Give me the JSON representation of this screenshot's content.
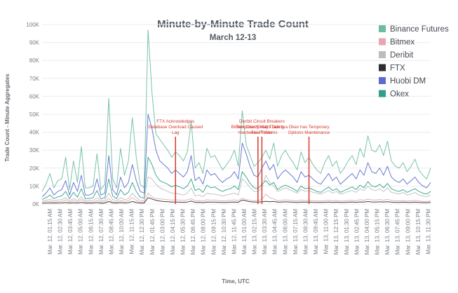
{
  "chart_data": {
    "type": "line",
    "title": "Minute-by-Minute Trade Count",
    "subtitle": "March 12-13",
    "xlabel": "Time, UTC",
    "ylabel": "Trade Count - Minute Aggregates",
    "ylim": [
      0,
      100000
    ],
    "y_ticks": [
      {
        "value": 0,
        "label": "0K"
      },
      {
        "value": 10000,
        "label": "10K"
      },
      {
        "value": 20000,
        "label": "20K"
      },
      {
        "value": 30000,
        "label": "30K"
      },
      {
        "value": 40000,
        "label": "40K"
      },
      {
        "value": 50000,
        "label": "50K"
      },
      {
        "value": 60000,
        "label": "60K"
      },
      {
        "value": 70000,
        "label": "70K"
      },
      {
        "value": 80000,
        "label": "80K"
      },
      {
        "value": 90000,
        "label": "90K"
      },
      {
        "value": 100000,
        "label": "100K"
      }
    ],
    "x_ticks": [
      "Mar. 12, 01:15 AM",
      "Mar. 12, 02:30 AM",
      "Mar. 12, 03:45 AM",
      "Mar. 12, 05:00 AM",
      "Mar. 12, 06:15 AM",
      "Mar. 12, 07:30 AM",
      "Mar. 12, 08:45 AM",
      "Mar. 12, 10:00 AM",
      "Mar. 12, 11:15 AM",
      "Mar. 12, 12:30 PM",
      "Mar. 12, 01:45 PM",
      "Mar. 12, 03:00 PM",
      "Mar. 12, 04:15 PM",
      "Mar. 12, 05:30 PM",
      "Mar. 12, 06:45 PM",
      "Mar. 12, 08:00 PM",
      "Mar. 12, 09:15 PM",
      "Mar. 12, 10:30 PM",
      "Mar. 12, 11:45 PM",
      "Mar. 13, 01:00 AM",
      "Mar. 13, 02:15 AM",
      "Mar. 13, 03:30 AM",
      "Mar. 13, 04:45 AM",
      "Mar. 13, 06:00 AM",
      "Mar. 13, 07:15 AM",
      "Mar. 13, 08:30 AM",
      "Mar. 13, 09:45 AM",
      "Mar. 13, 11:00 AM",
      "Mar. 13, 12:15 PM",
      "Mar. 13, 01:30 PM",
      "Mar. 13, 02:45 PM",
      "Mar. 13, 04:00 PM",
      "Mar. 13, 05:15 PM",
      "Mar. 13, 06:30 PM",
      "Mar. 13, 07:45 PM",
      "Mar. 13, 09:00 PM",
      "Mar. 13, 10:15 PM",
      "Mar. 13, 11:30 PM"
    ],
    "grid": true,
    "legend_position": "top-right",
    "series": [
      {
        "name": "Binance Futures",
        "color": "#6cbd9e",
        "values": [
          7000,
          11000,
          17000,
          9000,
          13000,
          14000,
          26000,
          8000,
          24000,
          12000,
          32000,
          9000,
          9000,
          10000,
          28000,
          8000,
          11000,
          59000,
          14000,
          9000,
          31000,
          16000,
          24000,
          48000,
          26000,
          11000,
          9000,
          97000,
          62000,
          39000,
          36000,
          33000,
          30000,
          26000,
          29000,
          27000,
          24000,
          29000,
          46000,
          20000,
          23000,
          17000,
          31000,
          26000,
          27000,
          23000,
          19000,
          22000,
          25000,
          30000,
          21000,
          52000,
          33000,
          27000,
          21000,
          23000,
          26000,
          30000,
          25000,
          34000,
          21000,
          27000,
          30000,
          26000,
          23000,
          19000,
          29000,
          23000,
          26000,
          22000,
          19000,
          17000,
          23000,
          27000,
          21000,
          24000,
          17000,
          20000,
          24000,
          27000,
          22000,
          31000,
          26000,
          38000,
          30000,
          29000,
          33000,
          27000,
          35000,
          24000,
          21000,
          20000,
          23000,
          18000,
          21000,
          25000,
          19000,
          16000,
          14000,
          20000
        ]
      },
      {
        "name": "Bitmex",
        "color": "#e8a6b4",
        "values": [
          1000,
          1200,
          1500,
          1000,
          1300,
          1500,
          2200,
          1000,
          2000,
          1200,
          2500,
          1000,
          1000,
          1100,
          2000,
          900,
          1100,
          3000,
          1200,
          900,
          2000,
          1400,
          1800,
          3500,
          2000,
          1100,
          1000,
          6000,
          4000,
          3000,
          2800,
          2600,
          2400,
          2200,
          2300,
          2200,
          2000,
          2300,
          3000,
          1800,
          1900,
          1600,
          2400,
          2100,
          2200,
          1900,
          1700,
          1800,
          2000,
          2300,
          1800,
          3200,
          2500,
          2100,
          1800,
          1900,
          2600,
          5500,
          3500,
          2800,
          1800,
          2100,
          2300,
          2100,
          1900,
          1700,
          2200,
          1900,
          2100,
          1800,
          1700,
          1600,
          1900,
          2100,
          1800,
          2000,
          1600,
          1700,
          2000,
          2100,
          1800,
          2400,
          2100,
          2700,
          2300,
          2200,
          2500,
          2100,
          2600,
          2000,
          1800,
          1700,
          1900,
          1600,
          1800,
          2000,
          1700,
          1500,
          1400,
          1700
        ]
      },
      {
        "name": "Deribit",
        "color": "#bdbdbd",
        "values": [
          1500,
          2000,
          2500,
          1800,
          2200,
          2500,
          3500,
          1800,
          3000,
          2000,
          4000,
          1800,
          1800,
          2000,
          3500,
          1600,
          2000,
          6000,
          2500,
          1800,
          3500,
          2500,
          3000,
          6000,
          3500,
          2000,
          1800,
          15000,
          14000,
          11000,
          9000,
          8000,
          7000,
          6000,
          6000,
          5500,
          5000,
          6000,
          9000,
          4500,
          5000,
          4000,
          6000,
          5500,
          5500,
          5000,
          4500,
          5000,
          5500,
          6000,
          5000,
          14000,
          12000,
          9000,
          7000,
          7000,
          9000,
          16000,
          12000,
          10000,
          7000,
          8000,
          9000,
          8000,
          7000,
          6000,
          8000,
          7000,
          7500,
          6500,
          6000,
          5500,
          6500,
          7500,
          6000,
          7000,
          5500,
          6000,
          7000,
          7500,
          6500,
          8500,
          7500,
          10000,
          8000,
          7500,
          8500,
          7000,
          9000,
          6500,
          6000,
          5500,
          6500,
          5000,
          5500,
          6500,
          5000,
          4500,
          4000,
          5000
        ]
      },
      {
        "name": "FTX",
        "color": "#2e2e2e",
        "values": [
          400,
          500,
          600,
          450,
          550,
          600,
          800,
          450,
          700,
          500,
          900,
          450,
          450,
          500,
          800,
          400,
          500,
          1400,
          600,
          450,
          800,
          600,
          700,
          1400,
          800,
          500,
          450,
          3500,
          2800,
          2000,
          1600,
          1400,
          1300,
          1100,
          1100,
          1000,
          950,
          1100,
          1600,
          900,
          950,
          800,
          1100,
          1000,
          1000,
          950,
          850,
          900,
          1000,
          1100,
          950,
          2200,
          1700,
          1300,
          1100,
          1100,
          1200,
          1500,
          1300,
          1400,
          1000,
          1100,
          1200,
          1100,
          1000,
          900,
          1100,
          1000,
          1050,
          950,
          900,
          850,
          950,
          1050,
          900,
          1000,
          850,
          900,
          1000,
          1050,
          950,
          1150,
          1050,
          1350,
          1150,
          1100,
          1200,
          1050,
          1250,
          1000,
          950,
          900,
          1000,
          850,
          900,
          1000,
          850,
          800,
          750,
          850
        ]
      },
      {
        "name": "Huobi DM",
        "color": "#5b6ccf",
        "values": [
          4000,
          6000,
          9000,
          5000,
          7000,
          8000,
          13000,
          5000,
          12000,
          7000,
          16000,
          5000,
          5000,
          6000,
          14000,
          5000,
          6000,
          27000,
          8000,
          5000,
          15000,
          9000,
          12000,
          22000,
          13000,
          7000,
          6000,
          50000,
          42000,
          30000,
          24000,
          22000,
          20000,
          17000,
          19000,
          17000,
          15000,
          18000,
          27000,
          13000,
          15000,
          11000,
          19000,
          16000,
          17000,
          14000,
          12000,
          14000,
          15000,
          18000,
          14000,
          34000,
          28000,
          21000,
          16000,
          15000,
          20000,
          24000,
          19000,
          22000,
          14000,
          17000,
          19000,
          17000,
          15000,
          12000,
          18000,
          15000,
          16000,
          14000,
          12000,
          11000,
          14000,
          17000,
          13000,
          15000,
          11000,
          13000,
          15000,
          17000,
          14000,
          19000,
          16000,
          23000,
          18000,
          17000,
          20000,
          16000,
          21000,
          15000,
          13000,
          12000,
          14000,
          11000,
          13000,
          15000,
          12000,
          10000,
          9000,
          12000
        ]
      },
      {
        "name": "Okex",
        "color": "#2f9e8a",
        "values": [
          2500,
          3500,
          5000,
          3000,
          4000,
          4500,
          7000,
          3000,
          6500,
          3800,
          8500,
          3000,
          3000,
          3500,
          7500,
          2800,
          3500,
          14000,
          4500,
          3000,
          8000,
          5000,
          6500,
          12000,
          7000,
          3800,
          3300,
          26000,
          22000,
          16000,
          13000,
          12000,
          11000,
          9500,
          10500,
          9500,
          8500,
          10000,
          14000,
          7500,
          8500,
          6500,
          10500,
          9000,
          9500,
          8000,
          7000,
          8000,
          8500,
          10000,
          8000,
          18000,
          15000,
          11500,
          9000,
          8500,
          11000,
          13000,
          10500,
          12000,
          8000,
          9500,
          10500,
          9500,
          8500,
          7000,
          10000,
          8500,
          9000,
          8000,
          7000,
          6500,
          8000,
          9500,
          7500,
          8500,
          6500,
          7500,
          8500,
          9500,
          8000,
          10500,
          9000,
          12500,
          10000,
          9500,
          11000,
          9000,
          11500,
          8500,
          7500,
          7000,
          8000,
          6500,
          7500,
          8500,
          7000,
          6000,
          5500,
          7000
        ]
      }
    ],
    "annotations": [
      {
        "lines": [
          "FTX Acknowledges",
          "Database Overload Caused",
          "Lag"
        ],
        "x_index": 34
      },
      {
        "lines": [
          "Bitmex Cites Delays Due to",
          "Hardware Problems"
        ],
        "x_index": 55
      },
      {
        "lines": [
          "Deribit Circuit Breakers",
          "Temporarily Halt Trading a",
          "Few Times"
        ],
        "x_index": 56
      },
      {
        "lines": [
          "Okex has Temporary",
          "Options Maintenance"
        ],
        "x_index": 68
      }
    ],
    "annotation_color": "#d63a2f"
  }
}
